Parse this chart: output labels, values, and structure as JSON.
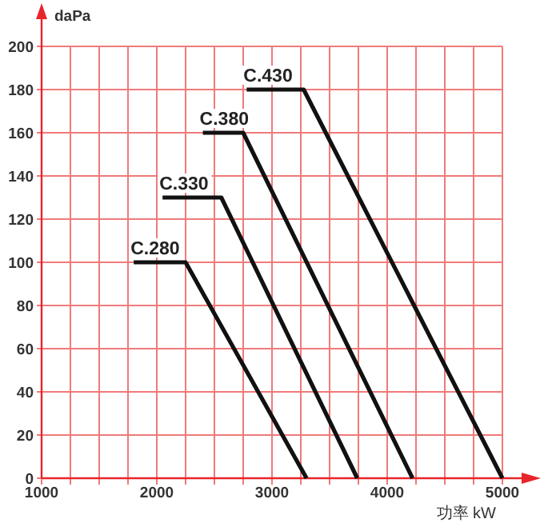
{
  "chart_data": {
    "type": "line",
    "xlabel": "功率 kW",
    "ylabel": "daPa",
    "xlim": [
      1000,
      5000
    ],
    "ylim": [
      0,
      200
    ],
    "xticks": [
      1000,
      {
        "value": 1250,
        "label": null
      },
      {
        "value": 1500,
        "label": null
      },
      {
        "value": 1750,
        "label": null
      },
      2000,
      {
        "value": 2250,
        "label": null
      },
      {
        "value": 2500,
        "label": null
      },
      {
        "value": 2750,
        "label": null
      },
      3000,
      {
        "value": 3250,
        "label": null
      },
      {
        "value": 3500,
        "label": null
      },
      {
        "value": 3750,
        "label": null
      },
      4000,
      {
        "value": 4250,
        "label": null
      },
      {
        "value": 4500,
        "label": null
      },
      {
        "value": 4750,
        "label": null
      },
      5000
    ],
    "yticks": [
      0,
      20,
      40,
      60,
      80,
      100,
      120,
      140,
      160,
      180,
      200
    ],
    "grid": true,
    "marker": "none",
    "line_style": "solid",
    "series": [
      {
        "name": "C.280",
        "color": "#111111",
        "x": [
          1800,
          2250,
          3300
        ],
        "values": [
          100,
          100,
          0
        ]
      },
      {
        "name": "C.330",
        "color": "#111111",
        "x": [
          2050,
          2560,
          3740
        ],
        "values": [
          130,
          130,
          0
        ]
      },
      {
        "name": "C.380",
        "color": "#111111",
        "x": [
          2400,
          2750,
          4220
        ],
        "values": [
          160,
          160,
          0
        ]
      },
      {
        "name": "C.430",
        "color": "#111111",
        "x": [
          2780,
          3275,
          5000
        ],
        "values": [
          180,
          180,
          0
        ]
      }
    ]
  }
}
